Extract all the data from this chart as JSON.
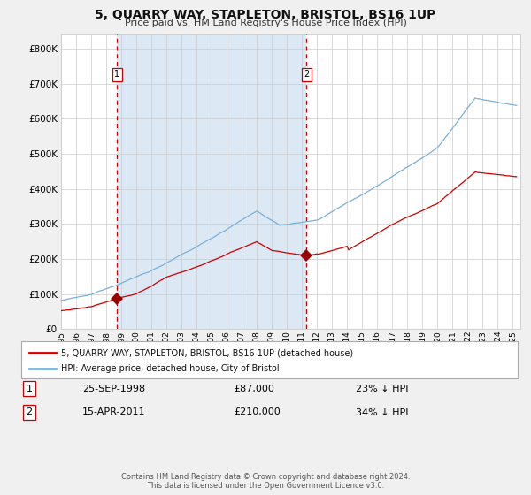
{
  "title": "5, QUARRY WAY, STAPLETON, BRISTOL, BS16 1UP",
  "subtitle": "Price paid vs. HM Land Registry's House Price Index (HPI)",
  "ytick_values": [
    0,
    100000,
    200000,
    300000,
    400000,
    500000,
    600000,
    700000,
    800000
  ],
  "ylim": [
    0,
    840000
  ],
  "xlim_start": 1995.0,
  "xlim_end": 2025.5,
  "transaction1": {
    "date": 1998.73,
    "value": 87000,
    "label": "1",
    "text_date": "25-SEP-1998",
    "text_value": "£87,000",
    "text_hpi": "23% ↓ HPI"
  },
  "transaction2": {
    "date": 2011.29,
    "value": 210000,
    "label": "2",
    "text_date": "15-APR-2011",
    "text_value": "£210,000",
    "text_hpi": "34% ↓ HPI"
  },
  "shading_start": 1998.73,
  "shading_end": 2011.29,
  "shading_color": "#dce9f5",
  "red_line_color": "#cc0000",
  "blue_line_color": "#7ab0d8",
  "vline_color": "#cc0000",
  "grid_color": "#cccccc",
  "bg_color": "#f0f0f0",
  "plot_bg_color": "#ffffff",
  "legend_line1": "5, QUARRY WAY, STAPLETON, BRISTOL, BS16 1UP (detached house)",
  "legend_line2": "HPI: Average price, detached house, City of Bristol",
  "footer": "Contains HM Land Registry data © Crown copyright and database right 2024.\nThis data is licensed under the Open Government Licence v3.0.",
  "marker_color": "#990000",
  "marker_size": 7
}
